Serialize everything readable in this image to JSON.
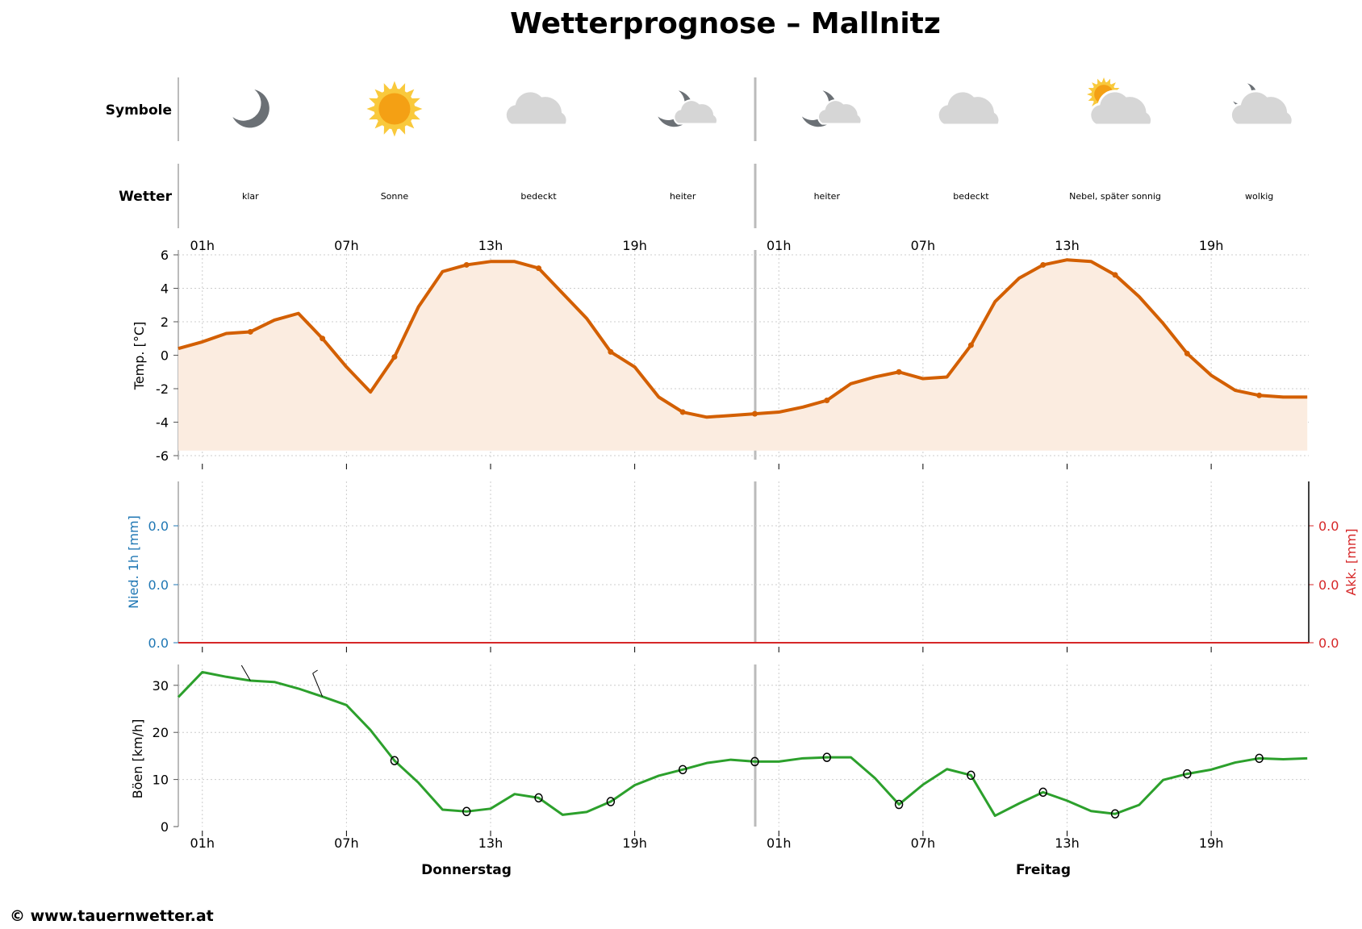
{
  "title": "Wetterprognose – Mallnitz",
  "footer": "© www.tauernwetter.at",
  "rows": {
    "symbols_label": "Symbole",
    "weather_label": "Wetter"
  },
  "days": [
    "Donnerstag",
    "Freitag"
  ],
  "hour_ticks": [
    "01h",
    "07h",
    "13h",
    "19h",
    "01h",
    "07h",
    "13h",
    "19h"
  ],
  "symbols": [
    {
      "hour": 3,
      "icon": "moon-icon",
      "text": "klar"
    },
    {
      "hour": 9,
      "icon": "sun-icon",
      "text": "Sonne"
    },
    {
      "hour": 15,
      "icon": "cloud-icon",
      "text": "bedeckt"
    },
    {
      "hour": 21,
      "icon": "moon-cloud-icon",
      "text": "heiter"
    },
    {
      "hour": 27,
      "icon": "moon-cloud-icon",
      "text": "heiter"
    },
    {
      "hour": 33,
      "icon": "cloud-icon",
      "text": "bedeckt"
    },
    {
      "hour": 39,
      "icon": "sun-cloud-icon",
      "text": "Nebel, später sonnig"
    },
    {
      "hour": 45,
      "icon": "moon-cloud-icon",
      "text": "wolkig"
    }
  ],
  "colors": {
    "temp": "#d35f00",
    "temp_fill": "#fbece0",
    "precip_left": "#1f77b4",
    "precip_right": "#d62728",
    "wind": "#2ca02c",
    "divider": "#bbbbbb"
  },
  "chart_data": [
    {
      "type": "line",
      "ylabel": "Temp. [°C]",
      "ylim": [
        -6,
        6
      ],
      "yticks": [
        "6",
        "4",
        "2",
        "0",
        "-2",
        "-4",
        "-6"
      ],
      "grid": true,
      "x_hours": [
        0,
        1,
        2,
        3,
        4,
        5,
        6,
        7,
        8,
        9,
        10,
        11,
        12,
        13,
        14,
        15,
        16,
        17,
        18,
        19,
        20,
        21,
        22,
        23,
        24,
        25,
        26,
        27,
        28,
        29,
        30,
        31,
        32,
        33,
        34,
        35,
        36,
        37,
        38,
        39,
        40,
        41,
        42,
        43,
        44,
        45,
        46,
        47
      ],
      "values": [
        0.4,
        0.8,
        1.3,
        1.4,
        2.1,
        2.5,
        1.0,
        -0.7,
        -2.2,
        -0.1,
        2.9,
        5.0,
        5.4,
        5.6,
        5.6,
        5.2,
        3.7,
        2.2,
        0.2,
        -0.7,
        -2.5,
        -3.4,
        -3.7,
        -3.6,
        -3.5,
        -3.4,
        -3.1,
        -2.7,
        -1.7,
        -1.3,
        -1.0,
        -1.4,
        -1.3,
        0.6,
        3.2,
        4.6,
        5.4,
        5.7,
        5.6,
        4.8,
        3.5,
        1.9,
        0.1,
        -1.2,
        -2.1,
        -2.4,
        -2.5,
        -2.5
      ]
    },
    {
      "type": "bar",
      "ylabel": "Nied. 1h [mm]",
      "ylabel_right": "Akk. [mm]",
      "yticks": [
        "0.0",
        "0.0",
        "0.0"
      ],
      "yticks_right": [
        "0.0",
        "0.0",
        "0.0"
      ],
      "values_total": 0.0,
      "grid": true
    },
    {
      "type": "line",
      "ylabel": "Böen [km/h]",
      "ylim": [
        0,
        34
      ],
      "yticks": [
        "30",
        "20",
        "10",
        "0"
      ],
      "grid": true,
      "values": [
        27.5,
        32.8,
        31.8,
        31.0,
        30.7,
        29.3,
        27.6,
        25.8,
        20.5,
        14.0,
        9.3,
        3.6,
        3.2,
        3.8,
        6.9,
        6.1,
        2.5,
        3.1,
        5.3,
        8.8,
        10.8,
        12.1,
        13.5,
        14.2,
        13.8,
        13.8,
        14.5,
        14.7,
        14.7,
        10.3,
        4.7,
        8.9,
        12.2,
        10.9,
        2.3,
        4.9,
        7.3,
        5.5,
        3.3,
        2.7,
        4.6,
        9.9,
        11.2,
        12.1,
        13.6,
        14.5,
        14.3,
        14.5
      ]
    }
  ]
}
